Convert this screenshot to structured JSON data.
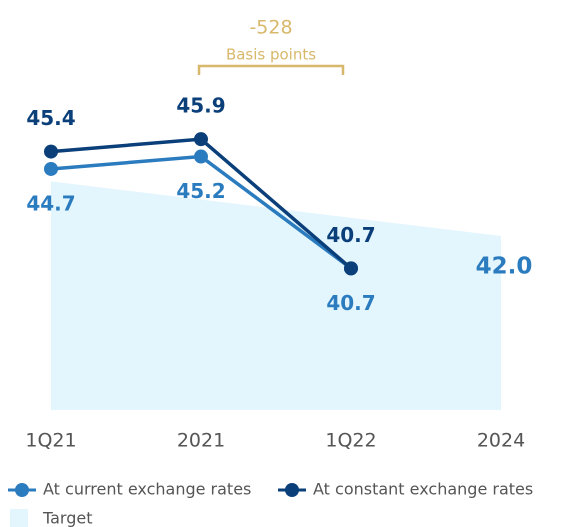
{
  "chart_data": {
    "type": "line",
    "categories": [
      "1Q21",
      "2021",
      "1Q22",
      "2024"
    ],
    "series": [
      {
        "name": "At current exchange rates",
        "color": "#2b7bbf",
        "values": [
          44.7,
          45.2,
          40.7,
          null
        ]
      },
      {
        "name": "At constant exchange rates",
        "color": "#0b3f7a",
        "values": [
          45.4,
          45.9,
          40.7,
          null
        ]
      },
      {
        "name": "Target",
        "color": "#e3f5fd",
        "area": true,
        "values": [
          44.2,
          null,
          null,
          42.0
        ],
        "value_labels": [
          null,
          null,
          null,
          "42.0"
        ]
      }
    ],
    "annotation": {
      "value": "-528",
      "label": "Basis points"
    },
    "ylim": [
      35,
      51.5
    ]
  }
}
